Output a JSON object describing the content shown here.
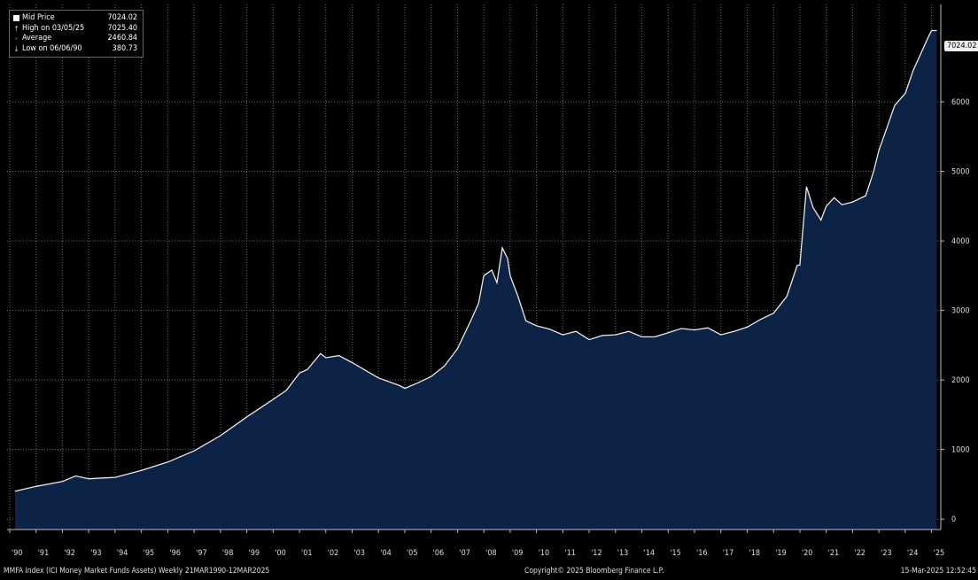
{
  "legend": {
    "mid_label": "Mid Price",
    "mid_value": "7024.02",
    "high_label": "High on 03/05/25",
    "high_value": "7025.40",
    "avg_label": "Average",
    "avg_value": "2460.84",
    "low_label": "Low on 06/06/90",
    "low_value": "380.73"
  },
  "last_value_label": "7024.02",
  "footer": {
    "left": "MMFA Index (ICI Money Market Funds Assets) Weekly 21MAR1990-12MAR2025",
    "center": "Copyright© 2025 Bloomberg Finance L.P.",
    "right": "15-Mar-2025 12:52:45"
  },
  "colors": {
    "background": "#000000",
    "line": "#e8e8e8",
    "fill": "#0d2346",
    "grid": "#6a6a6a"
  },
  "chart_data": {
    "type": "area",
    "ylim": [
      -150,
      7400
    ],
    "y_ticks": [
      "0",
      "1000",
      "2000",
      "3000",
      "4000",
      "5000",
      "6000"
    ],
    "y_tick_values": [
      0,
      1000,
      2000,
      3000,
      4000,
      5000,
      6000
    ],
    "x_tick_labels": [
      "'90",
      "'91",
      "'92",
      "'93",
      "'94",
      "'95",
      "'96",
      "'97",
      "'98",
      "'99",
      "'00",
      "'01",
      "'02",
      "'03",
      "'04",
      "'05",
      "'06",
      "'07",
      "'08",
      "'09",
      "'10",
      "'11",
      "'12",
      "'13",
      "'14",
      "'15",
      "'16",
      "'17",
      "'18",
      "'19",
      "'20",
      "'21",
      "'22",
      "'23",
      "'24",
      "'25"
    ],
    "x_tick_years": [
      1990,
      1991,
      1992,
      1993,
      1994,
      1995,
      1996,
      1997,
      1998,
      1999,
      2000,
      2001,
      2002,
      2003,
      2004,
      2005,
      2006,
      2007,
      2008,
      2009,
      2010,
      2011,
      2012,
      2013,
      2014,
      2015,
      2016,
      2017,
      2018,
      2019,
      2020,
      2021,
      2022,
      2023,
      2024,
      2025
    ],
    "grid": true,
    "x": [
      1990.2,
      1991.0,
      1992.0,
      1992.5,
      1993.0,
      1994.0,
      1995.0,
      1996.0,
      1997.0,
      1998.0,
      1999.0,
      2000.0,
      2000.5,
      2001.0,
      2001.3,
      2001.8,
      2002.0,
      2002.5,
      2003.0,
      2004.0,
      2004.8,
      2005.0,
      2005.5,
      2006.0,
      2006.5,
      2007.0,
      2007.5,
      2007.8,
      2008.0,
      2008.3,
      2008.5,
      2008.7,
      2008.9,
      2009.0,
      2009.3,
      2009.6,
      2010.0,
      2010.5,
      2011.0,
      2011.5,
      2012.0,
      2012.5,
      2013.0,
      2013.5,
      2014.0,
      2014.5,
      2015.0,
      2015.5,
      2016.0,
      2016.5,
      2017.0,
      2017.5,
      2018.0,
      2018.5,
      2019.0,
      2019.5,
      2019.9,
      2020.0,
      2020.25,
      2020.5,
      2020.8,
      2021.0,
      2021.3,
      2021.6,
      2022.0,
      2022.5,
      2022.8,
      2023.0,
      2023.3,
      2023.6,
      2024.0,
      2024.3,
      2024.6,
      2024.9,
      2025.0,
      2025.2
    ],
    "y": [
      400,
      470,
      540,
      620,
      580,
      600,
      700,
      820,
      980,
      1200,
      1470,
      1720,
      1850,
      2100,
      2150,
      2380,
      2320,
      2350,
      2250,
      2030,
      1920,
      1880,
      1960,
      2050,
      2200,
      2450,
      2850,
      3100,
      3500,
      3580,
      3400,
      3900,
      3750,
      3500,
      3200,
      2850,
      2780,
      2730,
      2650,
      2700,
      2580,
      2640,
      2650,
      2700,
      2620,
      2620,
      2680,
      2740,
      2720,
      2750,
      2650,
      2700,
      2760,
      2870,
      2960,
      3200,
      3650,
      3650,
      4780,
      4480,
      4300,
      4500,
      4620,
      4520,
      4560,
      4650,
      5000,
      5300,
      5620,
      5950,
      6120,
      6450,
      6700,
      6950,
      7024,
      7024
    ]
  }
}
